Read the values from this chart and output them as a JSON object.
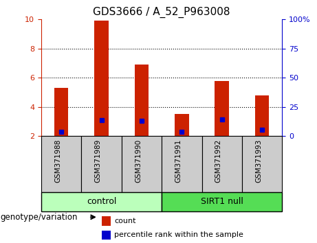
{
  "title": "GDS3666 / A_52_P963008",
  "samples": [
    "GSM371988",
    "GSM371989",
    "GSM371990",
    "GSM371991",
    "GSM371992",
    "GSM371993"
  ],
  "count_values": [
    5.3,
    9.9,
    6.9,
    3.5,
    5.8,
    4.8
  ],
  "percentile_values": [
    2.3,
    3.1,
    3.05,
    2.3,
    3.15,
    2.45
  ],
  "bar_bottom": 2.0,
  "ylim_left": [
    2,
    10
  ],
  "ylim_right": [
    0,
    100
  ],
  "yticks_left": [
    2,
    4,
    6,
    8,
    10
  ],
  "yticks_right": [
    0,
    25,
    50,
    75,
    100
  ],
  "bar_color": "#cc2200",
  "percentile_color": "#0000cc",
  "group_labels": [
    "control",
    "SIRT1 null"
  ],
  "control_color": "#bbffbb",
  "sirt1_color": "#55dd55",
  "xlabel_area": "genotype/variation",
  "legend_count_label": "count",
  "legend_percentile_label": "percentile rank within the sample",
  "tick_color_left": "#cc2200",
  "tick_color_right": "#0000cc",
  "bar_width": 0.35,
  "title_fontsize": 11,
  "tick_label_fontsize": 8,
  "grid_linestyle": ":",
  "grid_color": "black",
  "grid_linewidth": 0.8,
  "sample_cell_color": "#cccccc",
  "bar_area_bg": "white"
}
